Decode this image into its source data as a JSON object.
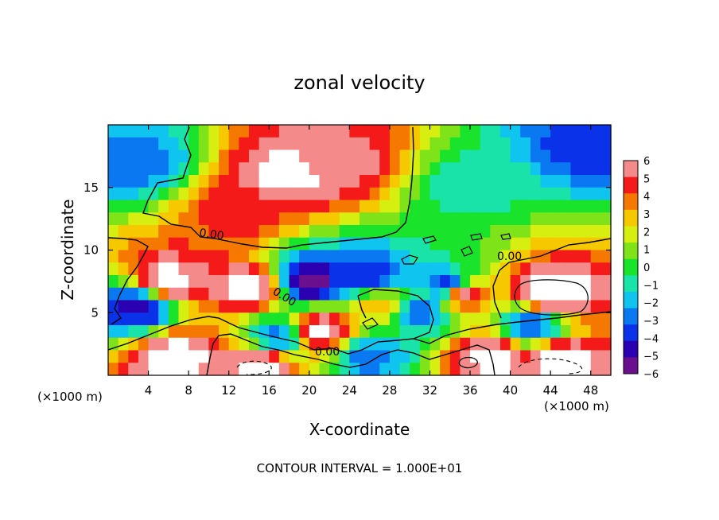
{
  "chart_data": {
    "type": "heatmap",
    "title": "zonal velocity",
    "xlabel": "X-coordinate",
    "ylabel": "Z-coordinate",
    "x_unit_note": "(×1000 m)",
    "z_unit_note": "(×1000 m)",
    "xlim": [
      0,
      50
    ],
    "ylim": [
      0,
      20
    ],
    "x_ticks": [
      "4",
      "8",
      "12",
      "16",
      "20",
      "24",
      "28",
      "32",
      "36",
      "40",
      "44",
      "48"
    ],
    "x_tick_values": [
      4,
      8,
      12,
      16,
      20,
      24,
      28,
      32,
      36,
      40,
      44,
      48
    ],
    "y_ticks": [
      "5",
      "10",
      "15"
    ],
    "y_tick_values": [
      5,
      10,
      15
    ],
    "colorbar": {
      "levels": [
        "6",
        "5",
        "4",
        "3",
        "2",
        "1",
        "0",
        "−1",
        "−2",
        "−3",
        "−4",
        "−5",
        "−6"
      ],
      "min": -6,
      "max": 6,
      "colors": [
        "#6a0f8e",
        "#2b00b0",
        "#0a32e8",
        "#0a78f0",
        "#10c4f0",
        "#19e3a8",
        "#19e32a",
        "#7fe31a",
        "#d6ee10",
        "#f5c800",
        "#f57800",
        "#f51a1a",
        "#f58a8a"
      ]
    },
    "contour_labels": [
      "0.00",
      "0.00",
      "0.00",
      "0.00"
    ],
    "features": [
      {
        "x": 18,
        "z": 16,
        "value": 7
      },
      {
        "x": 13,
        "z": 13,
        "value": 5
      },
      {
        "x": 23,
        "z": 17,
        "value": 6
      },
      {
        "x": 6,
        "z": 7.5,
        "value": 7
      },
      {
        "x": 14,
        "z": 7,
        "value": 7
      },
      {
        "x": 21,
        "z": 3.5,
        "value": 7
      },
      {
        "x": 7,
        "z": 1.5,
        "value": 7
      },
      {
        "x": 15,
        "z": 0.8,
        "value": 7
      },
      {
        "x": 35,
        "z": 6.5,
        "value": 7
      },
      {
        "x": 44,
        "z": 6.5,
        "value": 8
      },
      {
        "x": 38,
        "z": 1.5,
        "value": 7
      },
      {
        "x": 45,
        "z": 1.2,
        "value": 7
      },
      {
        "x": 3,
        "z": 5.5,
        "value": -5
      },
      {
        "x": 20,
        "z": 7.5,
        "value": -6
      },
      {
        "x": 26,
        "z": 7.8,
        "value": -4
      },
      {
        "x": 34,
        "z": 7,
        "value": -5
      },
      {
        "x": 3,
        "z": 17,
        "value": -3
      },
      {
        "x": 48,
        "z": 18.5,
        "value": -4
      },
      {
        "x": 31,
        "z": 5,
        "value": -3
      },
      {
        "x": 26,
        "z": 1.5,
        "value": -3
      },
      {
        "x": 42,
        "z": 4,
        "value": -3
      },
      {
        "x": 17,
        "z": 3,
        "value": -3
      },
      {
        "x": 36,
        "z": 15,
        "value": -1
      },
      {
        "x": 27,
        "z": 5.5,
        "value": 3
      }
    ],
    "footer": "CONTOUR INTERVAL = 1.000E+01"
  }
}
